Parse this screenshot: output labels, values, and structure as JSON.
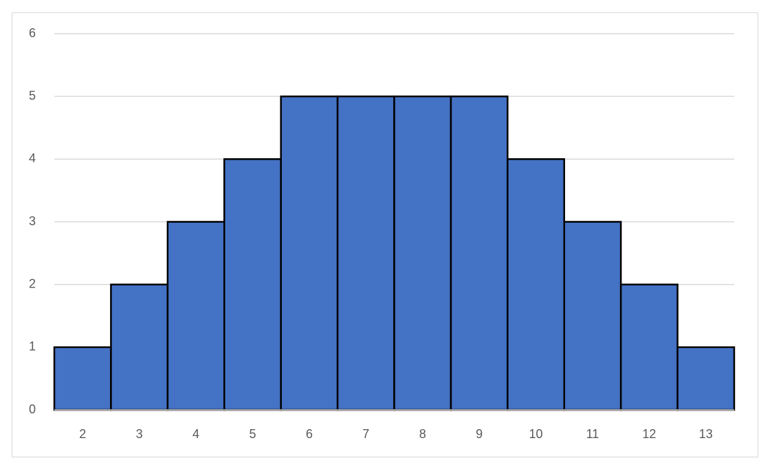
{
  "chart_data": {
    "type": "bar",
    "categories": [
      2,
      3,
      4,
      5,
      6,
      7,
      8,
      9,
      10,
      11,
      12,
      13
    ],
    "values": [
      1,
      2,
      3,
      4,
      5,
      5,
      5,
      5,
      4,
      3,
      2,
      1
    ],
    "color": "#4472c4",
    "ylim": [
      0,
      6
    ],
    "yticks": [
      0,
      1,
      2,
      3,
      4,
      5,
      6
    ],
    "grid": true
  }
}
